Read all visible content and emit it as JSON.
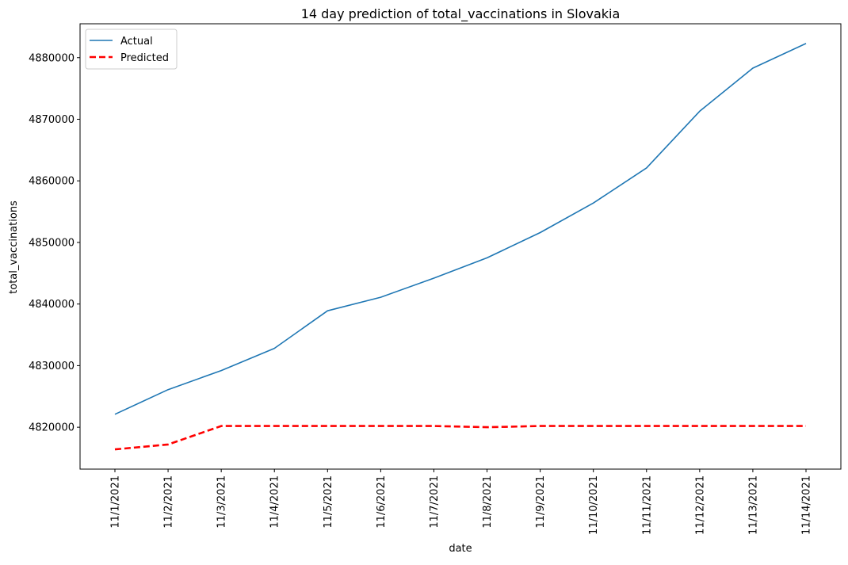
{
  "chart_data": {
    "type": "line",
    "title": "14 day prediction of total_vaccinations in Slovakia",
    "xlabel": "date",
    "ylabel": "total_vaccinations",
    "categories": [
      "11/1/2021",
      "11/2/2021",
      "11/3/2021",
      "11/4/2021",
      "11/5/2021",
      "11/6/2021",
      "11/7/2021",
      "11/8/2021",
      "11/9/2021",
      "11/10/2021",
      "11/11/2021",
      "11/12/2021",
      "11/13/2021",
      "11/14/2021"
    ],
    "ylim": [
      4813200,
      4885500
    ],
    "yticks": [
      4820000,
      4830000,
      4840000,
      4850000,
      4860000,
      4870000,
      4880000
    ],
    "ytick_labels": [
      "4820000",
      "4830000",
      "4840000",
      "4850000",
      "4860000",
      "4870000",
      "4880000"
    ],
    "grid": false,
    "legend_position": "upper-left",
    "series": [
      {
        "name": "Actual",
        "color": "#1f77b4",
        "style": "solid",
        "values": [
          4822100,
          4826100,
          4829200,
          4832800,
          4838900,
          4841100,
          4844200,
          4847500,
          4851600,
          4856400,
          4862100,
          4871300,
          4878300,
          4882300
        ]
      },
      {
        "name": "Predicted",
        "color": "#ff0000",
        "style": "dashed",
        "values": [
          4816400,
          4817200,
          4820200,
          4820200,
          4820200,
          4820200,
          4820200,
          4820000,
          4820200,
          4820200,
          4820200,
          4820200,
          4820200,
          4820200
        ]
      }
    ]
  }
}
